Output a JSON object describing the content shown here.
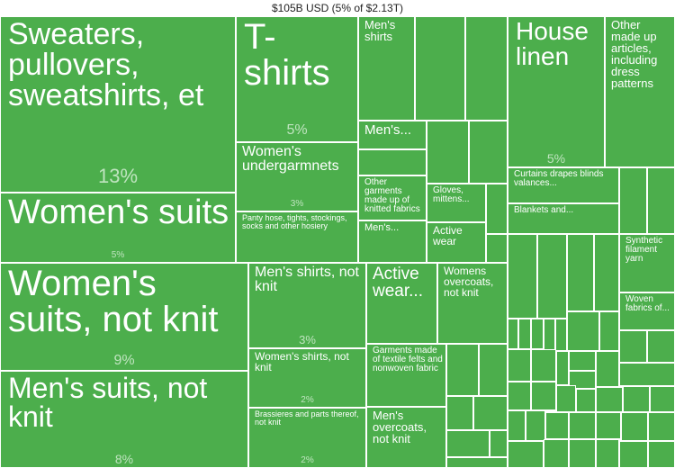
{
  "title": "$105B USD (5% of $2.13T)",
  "colors": {
    "tile": "#4cae4c",
    "border": "#ffffff",
    "label": "#ffffff",
    "percent": "#bfe4bf"
  },
  "chart_data": {
    "type": "treemap",
    "total_label": "$105B USD (5% of $2.13T)",
    "items": [
      {
        "label": "Sweaters, pullovers, sweatshirts, et",
        "percent_label": "13%",
        "share": 13
      },
      {
        "label": "Women's suits",
        "percent_label": "5%",
        "share": 5
      },
      {
        "label": "Women's suits, not knit",
        "percent_label": "9%",
        "share": 9
      },
      {
        "label": "Men's suits, not knit",
        "percent_label": "8%",
        "share": 8
      },
      {
        "label": "T-shirts",
        "percent_label": "5%",
        "share": 5
      },
      {
        "label": "Men's shirts",
        "percent_label": "",
        "share": null
      },
      {
        "label": "Men's...",
        "percent_label": "",
        "share": null
      },
      {
        "label": "Women's undergarmnets",
        "percent_label": "3%",
        "share": 3
      },
      {
        "label": "Other garments made up of knitted fabrics",
        "percent_label": "",
        "share": null
      },
      {
        "label": "Gloves, mittens...",
        "percent_label": "",
        "share": null
      },
      {
        "label": "Panty hose, tights, stockings, socks and other hosiery",
        "percent_label": "",
        "share": null
      },
      {
        "label": "Men's...",
        "percent_label": "",
        "share": null
      },
      {
        "label": "Active wear",
        "percent_label": "",
        "share": null
      },
      {
        "label": "Men's shirts, not knit",
        "percent_label": "3%",
        "share": 3
      },
      {
        "label": "Women's shirts, not knit",
        "percent_label": "2%",
        "share": 2
      },
      {
        "label": "Brassieres and parts thereof, not knit",
        "percent_label": "2%",
        "share": 2
      },
      {
        "label": "Active wear...",
        "percent_label": "",
        "share": null
      },
      {
        "label": "Womens overcoats, not knit",
        "percent_label": "",
        "share": null
      },
      {
        "label": "Garments made of textile felts and nonwoven fabric",
        "percent_label": "",
        "share": null
      },
      {
        "label": "Men's overcoats, not knit",
        "percent_label": "",
        "share": null
      },
      {
        "label": "House linen",
        "percent_label": "5%",
        "share": 5
      },
      {
        "label": "Other made up articles, including dress patterns",
        "percent_label": "",
        "share": null
      },
      {
        "label": "Curtains drapes blinds valances...",
        "percent_label": "",
        "share": null
      },
      {
        "label": "Blankets and...",
        "percent_label": "",
        "share": null
      },
      {
        "label": "Synthetic filament yarn",
        "percent_label": "",
        "share": null
      },
      {
        "label": "Woven fabrics of...",
        "percent_label": "",
        "share": null
      }
    ]
  }
}
